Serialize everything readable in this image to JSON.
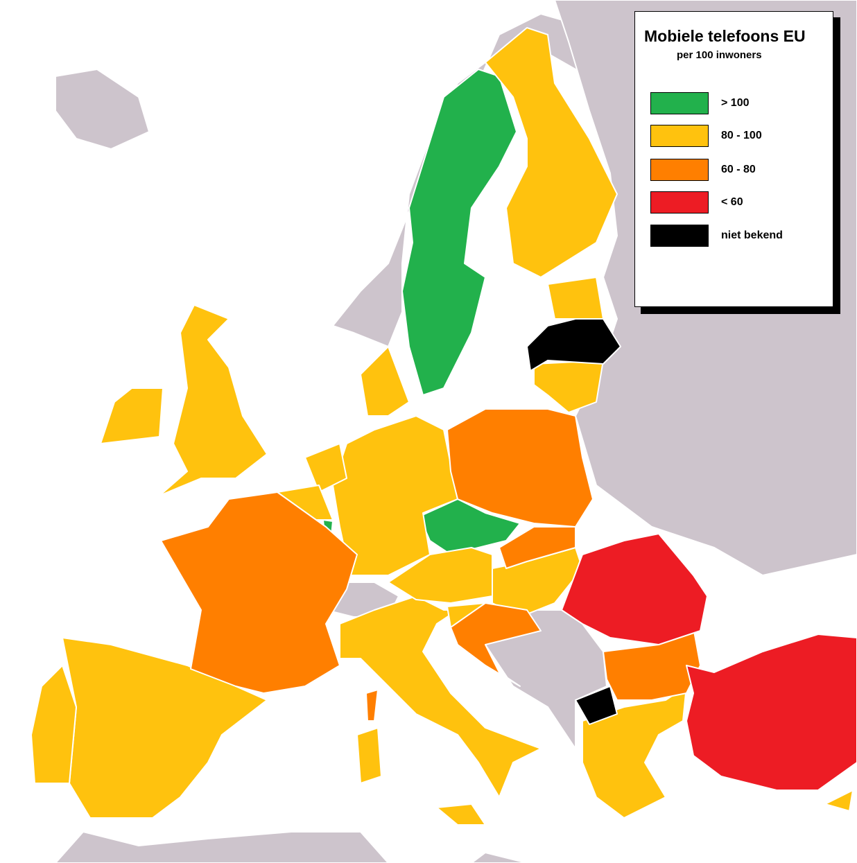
{
  "legend": {
    "title": "Mobiele telefoons EU",
    "subtitle": "per 100 inwoners",
    "items": [
      {
        "key": "gt100",
        "label": "> 100",
        "color": "#22b14c"
      },
      {
        "key": "80to100",
        "label": "80 - 100",
        "color": "#ffc20e"
      },
      {
        "key": "60to80",
        "label": "60 - 80",
        "color": "#ff7f00"
      },
      {
        "key": "lt60",
        "label": "< 60",
        "color": "#ed1c24"
      },
      {
        "key": "unknown",
        "label": "niet bekend",
        "color": "#000000"
      }
    ]
  },
  "colors": {
    "sea": "#ffffff",
    "non_eu_land": "#cdc4cc",
    "border": "#ffffff"
  },
  "regions": {
    "sweden": "gt100",
    "czech-republic": "gt100",
    "luxembourg": "gt100",
    "finland": "80to100",
    "estonia": "80to100",
    "lithuania": "80to100",
    "denmark": "80to100",
    "germany": "80to100",
    "netherlands": "80to100",
    "belgium": "80to100",
    "united-kingdom": "80to100",
    "ireland": "80to100",
    "spain": "80to100",
    "portugal": "80to100",
    "italy": "80to100",
    "sicily": "80to100",
    "sardinia": "80to100",
    "austria": "80to100",
    "hungary": "80to100",
    "slovenia": "80to100",
    "greece": "80to100",
    "cyprus": "80to100",
    "poland": "60to80",
    "france": "60to80",
    "corsica": "60to80",
    "slovakia": "60to80",
    "croatia": "60to80",
    "bulgaria": "60to80",
    "romania": "lt60",
    "turkey": "lt60",
    "latvia": "unknown",
    "macedonia": "unknown"
  }
}
